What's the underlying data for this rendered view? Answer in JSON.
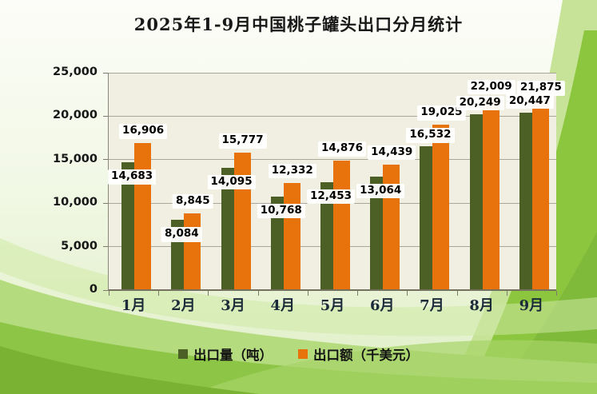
{
  "title": "2025年1-9月中国桃子罐头出口分月统计",
  "chart_data": {
    "type": "bar",
    "title": "2025年1-9月中国桃子罐头出口分月统计",
    "categories": [
      "1月",
      "2月",
      "3月",
      "4月",
      "5月",
      "6月",
      "7月",
      "8月",
      "9月"
    ],
    "series": [
      {
        "name": "出口量（吨）",
        "color": "#4c6026",
        "values": [
          14683,
          8084,
          14095,
          10768,
          12453,
          13064,
          16532,
          20249,
          20447
        ]
      },
      {
        "name": "出口额（千美元）",
        "color": "#e8720c",
        "values": [
          16906,
          8845,
          15777,
          12332,
          14876,
          14439,
          19025,
          22009,
          21875
        ]
      }
    ],
    "ylim": [
      0,
      25000
    ],
    "ytick_interval": 5000,
    "ytick_labels": [
      "0",
      "5,000",
      "10,000",
      "15,000",
      "20,000",
      "25,000"
    ],
    "grid": true,
    "legend_position": "bottom",
    "plot_background": "#f1efe2",
    "gridline_color": "#a9a79a"
  }
}
